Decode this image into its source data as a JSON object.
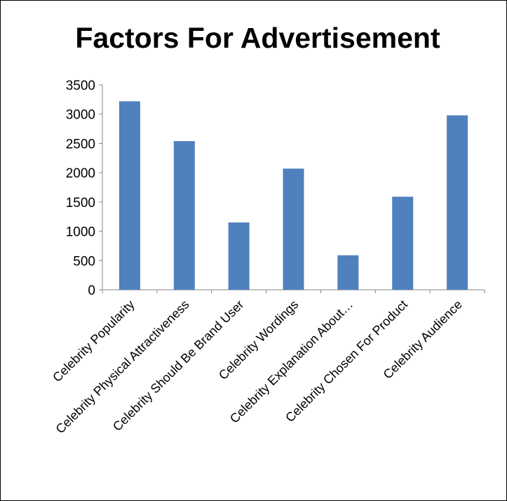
{
  "chart_data": {
    "type": "bar",
    "title": "Factors For Advertisement",
    "xlabel": "",
    "ylabel": "",
    "categories": [
      "Celebrity Popularity",
      "Celebrity Physical Attractiveness",
      "Celebrity Should Be Brand User",
      "Celebrity Wordings",
      "Celebrity Explanation About…",
      "Celebrity Chosen For Product",
      "Celebrity Audience"
    ],
    "values": [
      3220,
      2540,
      1150,
      2070,
      590,
      1590,
      2980
    ],
    "ylim": [
      0,
      3500
    ],
    "yticks": [
      0,
      500,
      1000,
      1500,
      2000,
      2500,
      3000,
      3500
    ],
    "bar_color": "#4F81BD",
    "legend": "none",
    "grid": false
  }
}
